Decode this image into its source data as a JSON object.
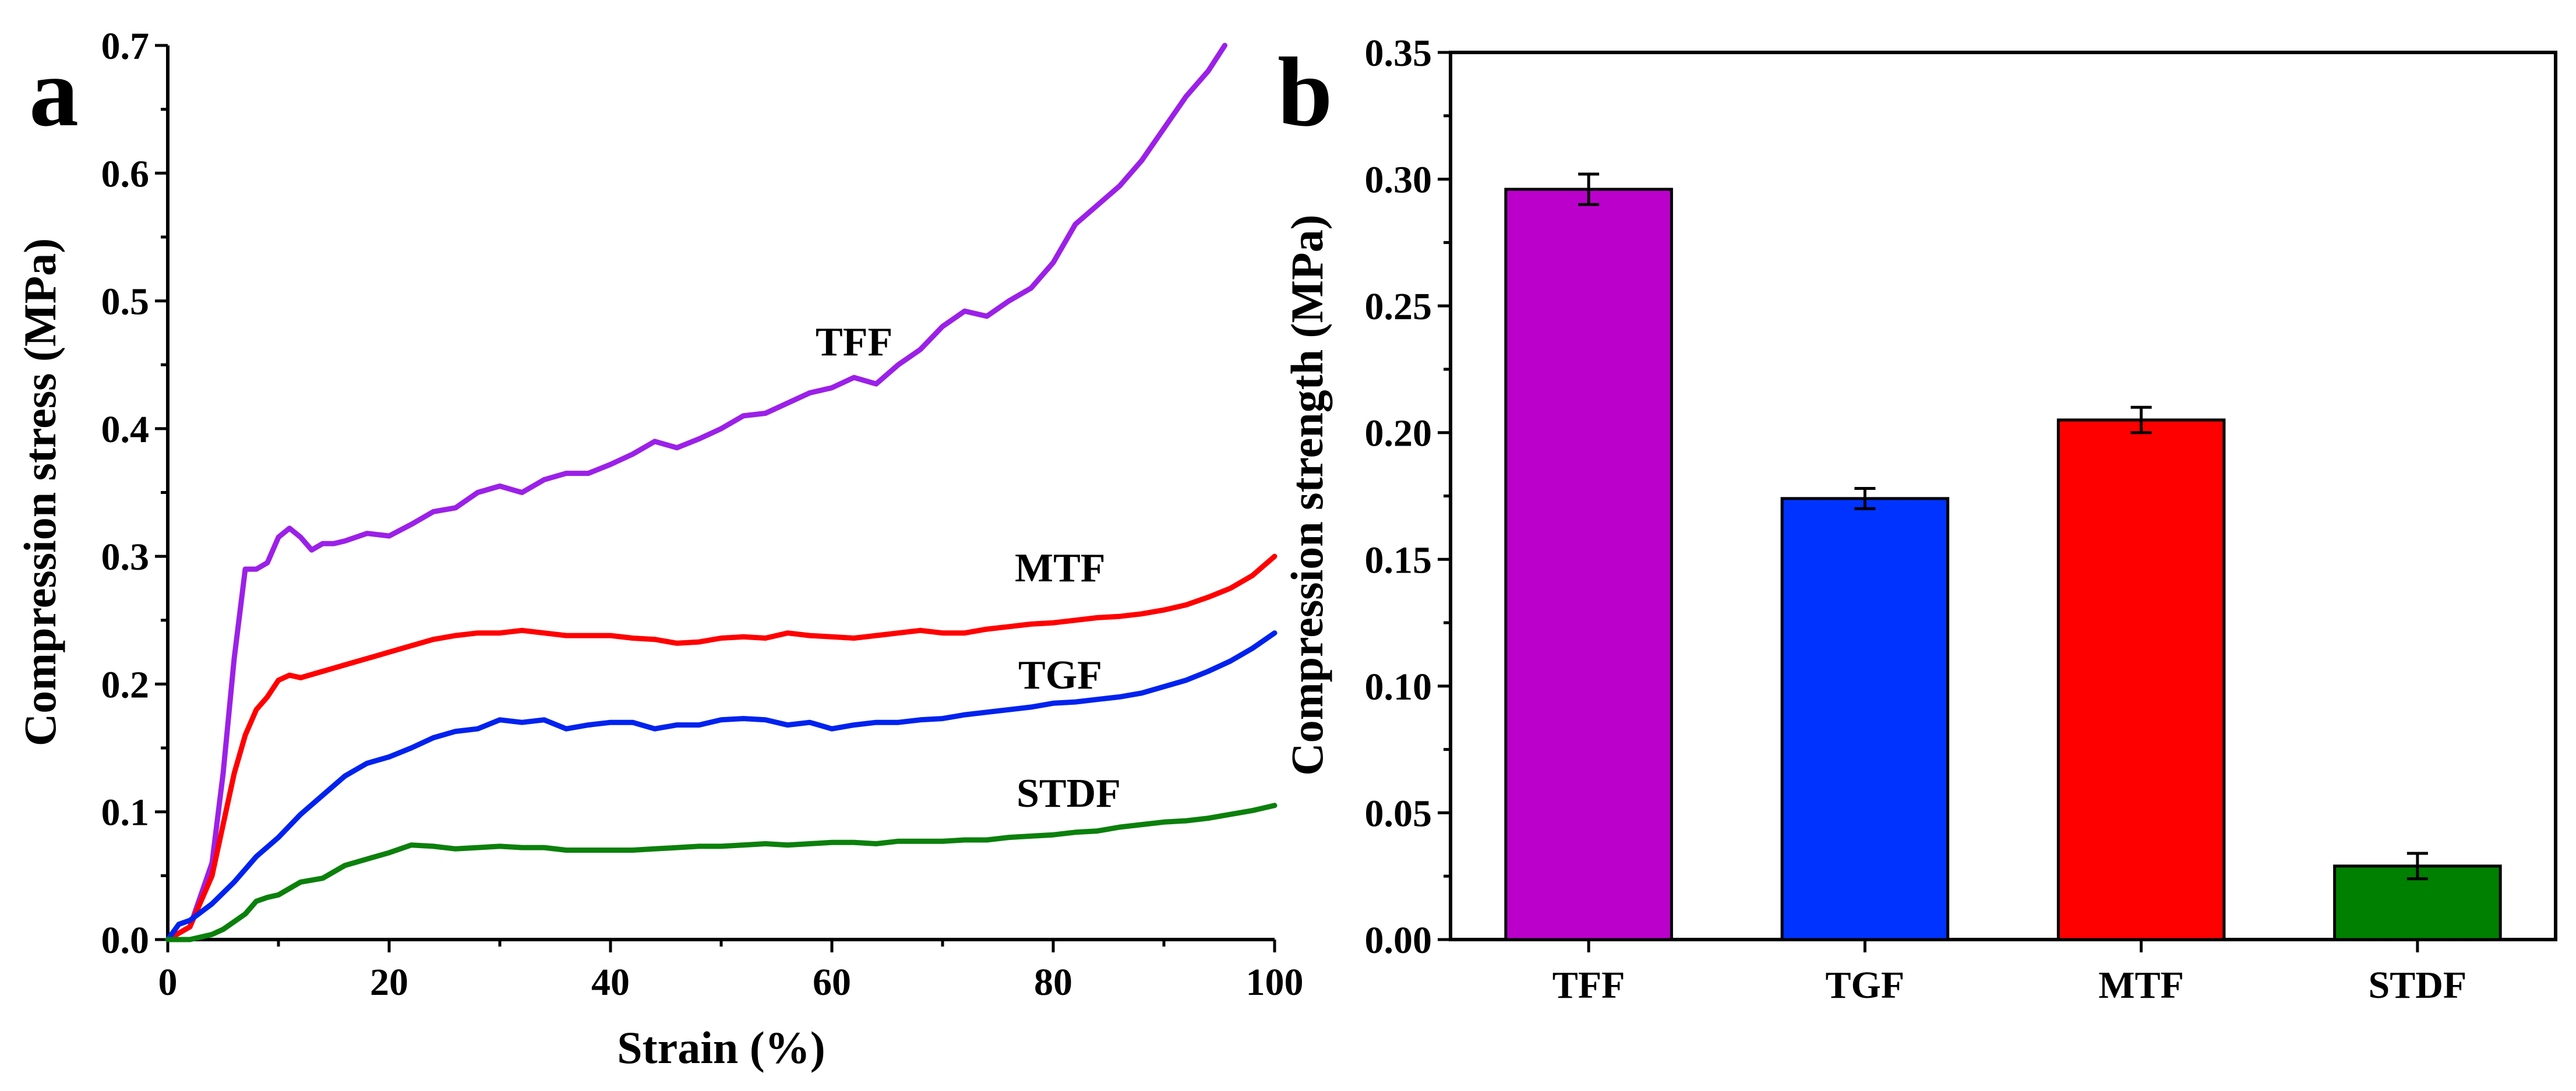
{
  "chart_data": [
    {
      "panel": "a",
      "type": "line",
      "title": "",
      "xlabel": "Strain (%)",
      "ylabel": "Compression stress (MPa)",
      "xlim": [
        0,
        100
      ],
      "ylim": [
        0,
        0.7
      ],
      "xticks": [
        "0",
        "20",
        "40",
        "60",
        "80",
        "100"
      ],
      "yticks": [
        "0.0",
        "0.1",
        "0.2",
        "0.3",
        "0.4",
        "0.5",
        "0.6",
        "0.7"
      ],
      "series": [
        {
          "name": "TFF",
          "color": "#9b20e8",
          "x": [
            0,
            2,
            4,
            5,
            6,
            7,
            8,
            9,
            10,
            11,
            12,
            13,
            14,
            15,
            16,
            18,
            20,
            22,
            24,
            26,
            28,
            30,
            32,
            34,
            36,
            38,
            40,
            42,
            44,
            46,
            48,
            50,
            52,
            54,
            56,
            58,
            60,
            62,
            64,
            66,
            68,
            70,
            72,
            74,
            76,
            78,
            80,
            82,
            84,
            86,
            88,
            90,
            92,
            94,
            95.5
          ],
          "y": [
            0.0,
            0.01,
            0.06,
            0.13,
            0.22,
            0.29,
            0.29,
            0.295,
            0.315,
            0.322,
            0.315,
            0.305,
            0.31,
            0.31,
            0.312,
            0.318,
            0.316,
            0.325,
            0.335,
            0.338,
            0.35,
            0.355,
            0.35,
            0.36,
            0.365,
            0.365,
            0.372,
            0.38,
            0.39,
            0.385,
            0.392,
            0.4,
            0.41,
            0.412,
            0.42,
            0.428,
            0.432,
            0.44,
            0.435,
            0.45,
            0.462,
            0.48,
            0.492,
            0.488,
            0.5,
            0.51,
            0.53,
            0.56,
            0.575,
            0.59,
            0.61,
            0.635,
            0.66,
            0.68,
            0.7
          ]
        },
        {
          "name": "MTF",
          "color": "#ff0000",
          "x": [
            0,
            2,
            4,
            5,
            6,
            7,
            8,
            9,
            10,
            11,
            12,
            14,
            16,
            18,
            20,
            22,
            24,
            26,
            28,
            30,
            32,
            34,
            36,
            38,
            40,
            42,
            44,
            46,
            48,
            50,
            52,
            54,
            56,
            58,
            60,
            62,
            64,
            66,
            68,
            70,
            72,
            74,
            76,
            78,
            80,
            82,
            84,
            86,
            88,
            90,
            92,
            94,
            96,
            98,
            100
          ],
          "y": [
            0.0,
            0.01,
            0.05,
            0.09,
            0.13,
            0.16,
            0.18,
            0.19,
            0.203,
            0.207,
            0.205,
            0.21,
            0.215,
            0.22,
            0.225,
            0.23,
            0.235,
            0.238,
            0.24,
            0.24,
            0.242,
            0.24,
            0.238,
            0.238,
            0.238,
            0.236,
            0.235,
            0.232,
            0.233,
            0.236,
            0.237,
            0.236,
            0.24,
            0.238,
            0.237,
            0.236,
            0.238,
            0.24,
            0.242,
            0.24,
            0.24,
            0.243,
            0.245,
            0.247,
            0.248,
            0.25,
            0.252,
            0.253,
            0.255,
            0.258,
            0.262,
            0.268,
            0.275,
            0.285,
            0.3
          ]
        },
        {
          "name": "TGF",
          "color": "#0022ee",
          "x": [
            0,
            1,
            2,
            4,
            6,
            8,
            10,
            12,
            14,
            16,
            18,
            20,
            22,
            24,
            26,
            28,
            30,
            32,
            34,
            36,
            38,
            40,
            42,
            44,
            46,
            48,
            50,
            52,
            54,
            56,
            58,
            60,
            62,
            64,
            66,
            68,
            70,
            72,
            74,
            76,
            78,
            80,
            82,
            84,
            86,
            88,
            90,
            92,
            94,
            96,
            98,
            100
          ],
          "y": [
            0.0,
            0.012,
            0.015,
            0.028,
            0.045,
            0.065,
            0.08,
            0.098,
            0.113,
            0.128,
            0.138,
            0.143,
            0.15,
            0.158,
            0.163,
            0.165,
            0.172,
            0.17,
            0.172,
            0.165,
            0.168,
            0.17,
            0.17,
            0.165,
            0.168,
            0.168,
            0.172,
            0.173,
            0.172,
            0.168,
            0.17,
            0.165,
            0.168,
            0.17,
            0.17,
            0.172,
            0.173,
            0.176,
            0.178,
            0.18,
            0.182,
            0.185,
            0.186,
            0.188,
            0.19,
            0.193,
            0.198,
            0.203,
            0.21,
            0.218,
            0.228,
            0.24
          ]
        },
        {
          "name": "STDF",
          "color": "#0b800b",
          "x": [
            0,
            2,
            3,
            4,
            5,
            6,
            7,
            8,
            9,
            10,
            12,
            14,
            16,
            18,
            20,
            22,
            24,
            26,
            28,
            30,
            32,
            34,
            36,
            38,
            40,
            42,
            44,
            46,
            48,
            50,
            52,
            54,
            56,
            58,
            60,
            62,
            64,
            66,
            68,
            70,
            72,
            74,
            76,
            78,
            80,
            82,
            84,
            86,
            88,
            90,
            92,
            94,
            96,
            98,
            100
          ],
          "y": [
            0.0,
            0.0,
            0.002,
            0.004,
            0.008,
            0.014,
            0.02,
            0.03,
            0.033,
            0.035,
            0.045,
            0.048,
            0.058,
            0.063,
            0.068,
            0.074,
            0.073,
            0.071,
            0.072,
            0.073,
            0.072,
            0.072,
            0.07,
            0.07,
            0.07,
            0.07,
            0.071,
            0.072,
            0.073,
            0.073,
            0.074,
            0.075,
            0.074,
            0.075,
            0.076,
            0.076,
            0.075,
            0.077,
            0.077,
            0.077,
            0.078,
            0.078,
            0.08,
            0.081,
            0.082,
            0.084,
            0.085,
            0.088,
            0.09,
            0.092,
            0.093,
            0.095,
            0.098,
            0.101,
            0.105
          ]
        }
      ]
    },
    {
      "panel": "b",
      "type": "bar",
      "title": "",
      "xlabel": "",
      "ylabel": "Compression strength (MPa)",
      "ylim": [
        0,
        0.35
      ],
      "yticks": [
        "0.00",
        "0.05",
        "0.10",
        "0.15",
        "0.20",
        "0.25",
        "0.30",
        "0.35"
      ],
      "categories": [
        "TFF",
        "TGF",
        "MTF",
        "STDF"
      ],
      "values": [
        0.296,
        0.174,
        0.205,
        0.029
      ],
      "errors": [
        0.006,
        0.004,
        0.005,
        0.005
      ],
      "colors": [
        "#bb00cc",
        "#0033ff",
        "#ff0000",
        "#008000"
      ]
    }
  ]
}
